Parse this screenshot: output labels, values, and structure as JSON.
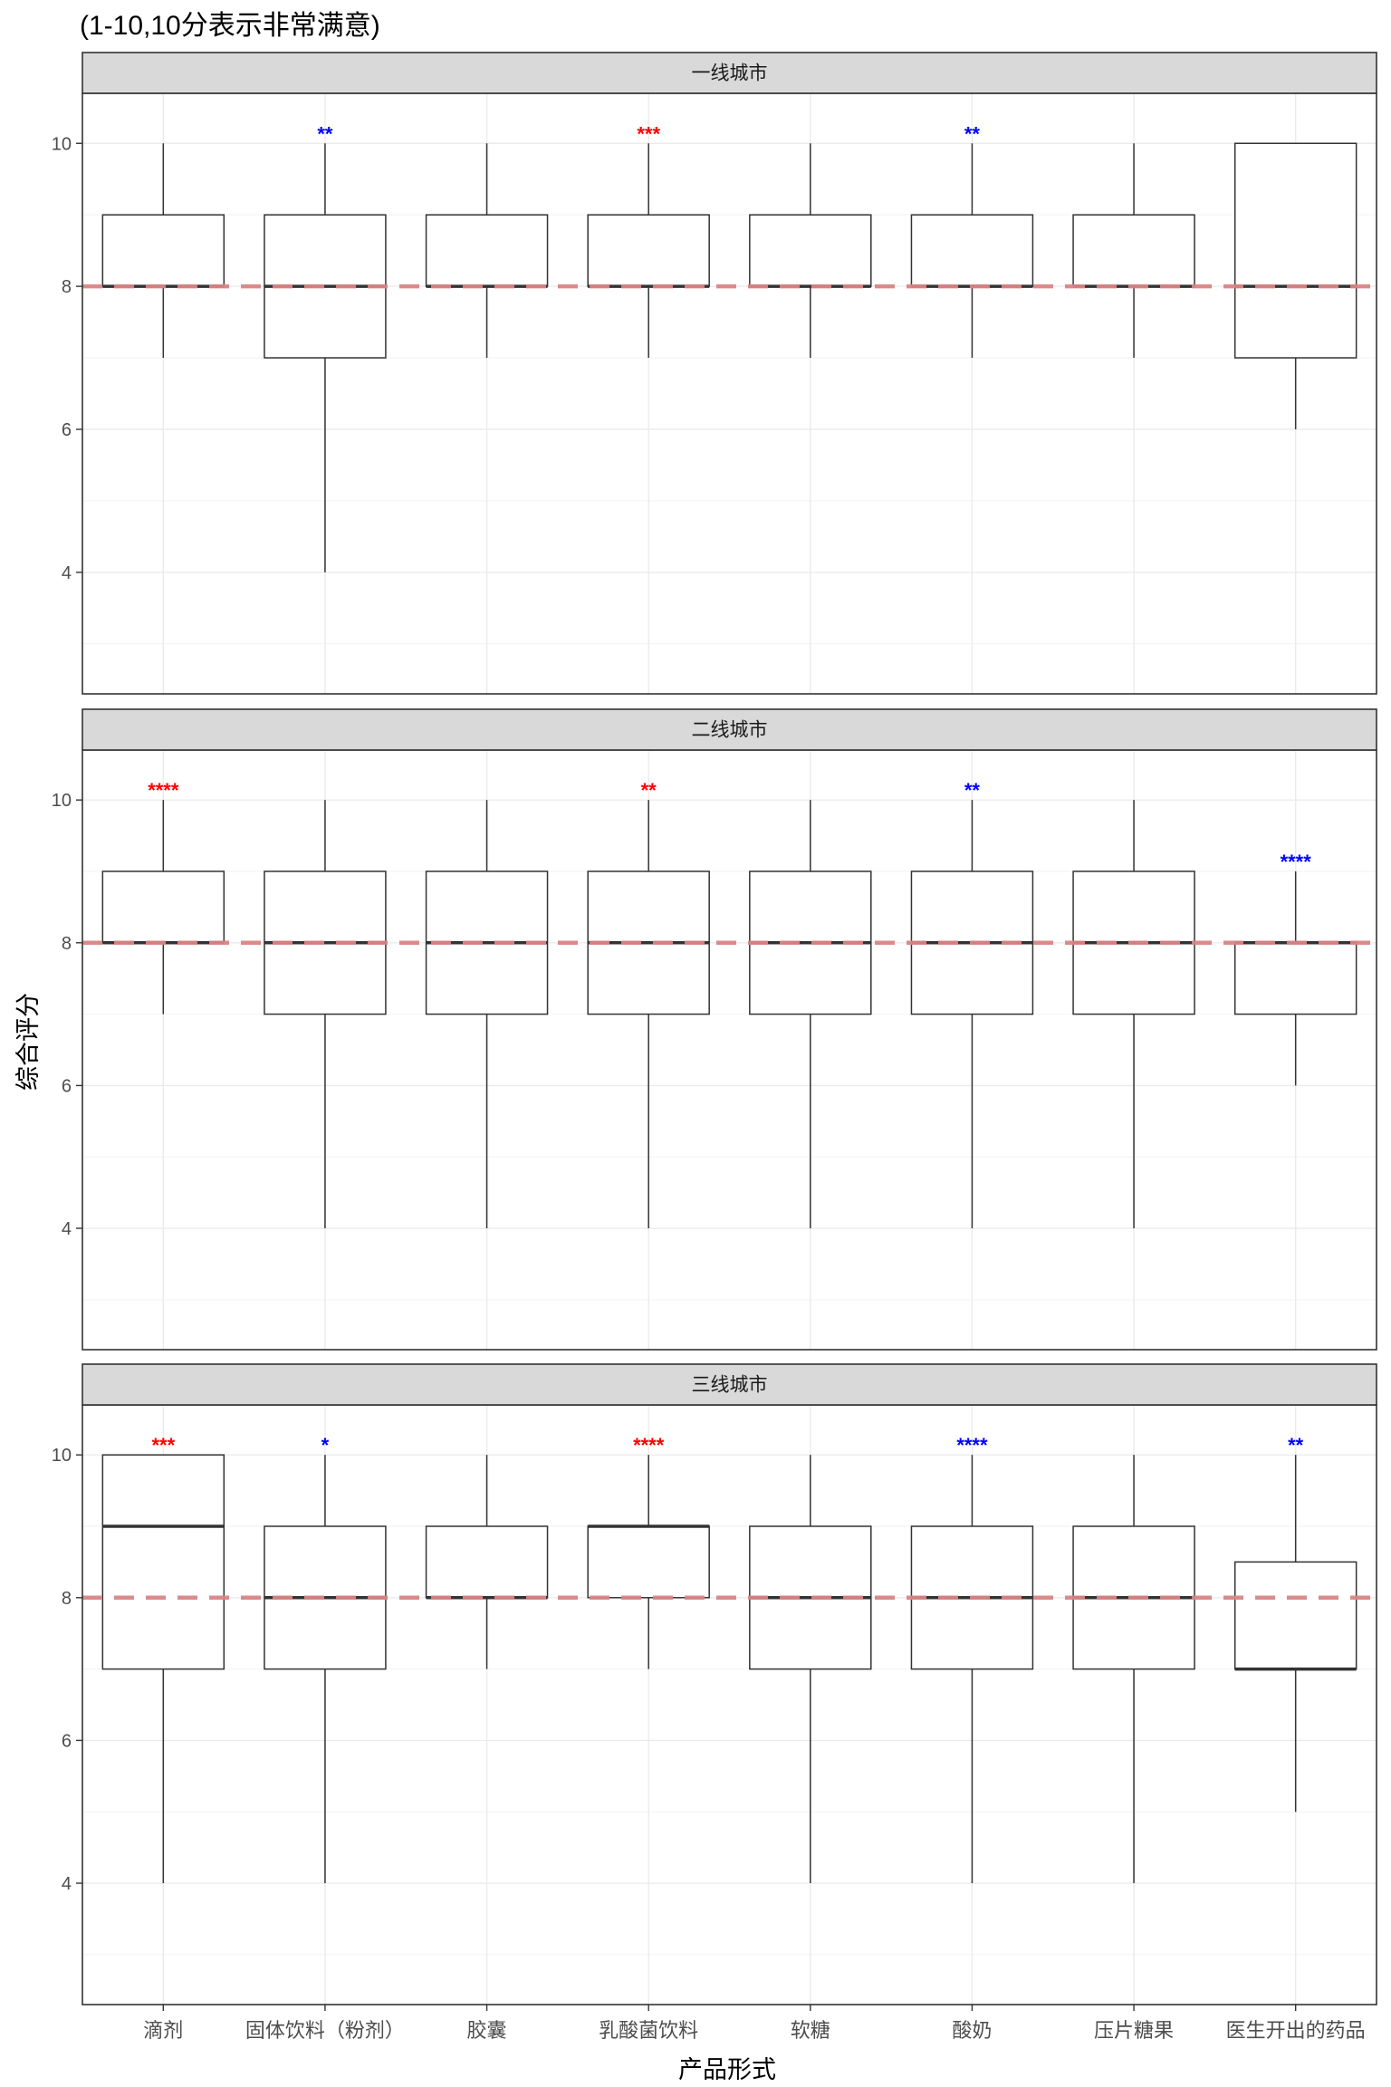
{
  "chart_data": {
    "type": "boxplot",
    "subtitle": "(1-10,10分表示非常满意)",
    "xlabel": "产品形式",
    "ylabel": "综合评分",
    "ylim": [
      2.3,
      10.7
    ],
    "yticks": [
      4,
      6,
      8,
      10
    ],
    "reference_line": 8,
    "reference_line_color": "#d98585",
    "categories": [
      "滴剂",
      "固体饮料（粉剂）",
      "胶囊",
      "乳酸菌饮料",
      "软糖",
      "酸奶",
      "压片糖果",
      "医生开出的药品"
    ],
    "colors": {
      "red": "#ff0000",
      "blue": "#0000ff"
    },
    "grid": true,
    "panels": [
      {
        "label": "一线城市",
        "boxes": [
          {
            "min": 7,
            "q1": 8,
            "median": 8,
            "q3": 9,
            "max": 10,
            "sig": "",
            "sig_color": ""
          },
          {
            "min": 4,
            "q1": 7,
            "median": 8,
            "q3": 9,
            "max": 10,
            "sig": "**",
            "sig_color": "blue"
          },
          {
            "min": 7,
            "q1": 8,
            "median": 8,
            "q3": 9,
            "max": 10,
            "sig": "",
            "sig_color": ""
          },
          {
            "min": 7,
            "q1": 8,
            "median": 8,
            "q3": 9,
            "max": 10,
            "sig": "***",
            "sig_color": "red"
          },
          {
            "min": 7,
            "q1": 8,
            "median": 8,
            "q3": 9,
            "max": 10,
            "sig": "",
            "sig_color": ""
          },
          {
            "min": 7,
            "q1": 8,
            "median": 8,
            "q3": 9,
            "max": 10,
            "sig": "**",
            "sig_color": "blue"
          },
          {
            "min": 7,
            "q1": 8,
            "median": 8,
            "q3": 9,
            "max": 10,
            "sig": "",
            "sig_color": ""
          },
          {
            "min": 6,
            "q1": 7,
            "median": 8,
            "q3": 10,
            "max": 10,
            "sig": "",
            "sig_color": ""
          }
        ]
      },
      {
        "label": "二线城市",
        "boxes": [
          {
            "min": 7,
            "q1": 8,
            "median": 8,
            "q3": 9,
            "max": 10,
            "sig": "****",
            "sig_color": "red"
          },
          {
            "min": 4,
            "q1": 7,
            "median": 8,
            "q3": 9,
            "max": 10,
            "sig": "",
            "sig_color": ""
          },
          {
            "min": 4,
            "q1": 7,
            "median": 8,
            "q3": 9,
            "max": 10,
            "sig": "",
            "sig_color": ""
          },
          {
            "min": 4,
            "q1": 7,
            "median": 8,
            "q3": 9,
            "max": 10,
            "sig": "**",
            "sig_color": "red"
          },
          {
            "min": 4,
            "q1": 7,
            "median": 8,
            "q3": 9,
            "max": 10,
            "sig": "",
            "sig_color": ""
          },
          {
            "min": 4,
            "q1": 7,
            "median": 8,
            "q3": 9,
            "max": 10,
            "sig": "**",
            "sig_color": "blue"
          },
          {
            "min": 4,
            "q1": 7,
            "median": 8,
            "q3": 9,
            "max": 10,
            "sig": "",
            "sig_color": ""
          },
          {
            "min": 6,
            "q1": 7,
            "median": 8,
            "q3": 8,
            "max": 9,
            "sig": "****",
            "sig_color": "blue"
          }
        ]
      },
      {
        "label": "三线城市",
        "boxes": [
          {
            "min": 4,
            "q1": 7,
            "median": 9,
            "q3": 10,
            "max": 10,
            "sig": "***",
            "sig_color": "red"
          },
          {
            "min": 4,
            "q1": 7,
            "median": 8,
            "q3": 9,
            "max": 10,
            "sig": "*",
            "sig_color": "blue"
          },
          {
            "min": 7,
            "q1": 8,
            "median": 8,
            "q3": 9,
            "max": 10,
            "sig": "",
            "sig_color": ""
          },
          {
            "min": 7,
            "q1": 8,
            "median": 9,
            "q3": 9,
            "max": 10,
            "sig": "****",
            "sig_color": "red"
          },
          {
            "min": 4,
            "q1": 7,
            "median": 8,
            "q3": 9,
            "max": 10,
            "sig": "",
            "sig_color": ""
          },
          {
            "min": 4,
            "q1": 7,
            "median": 8,
            "q3": 9,
            "max": 10,
            "sig": "****",
            "sig_color": "blue"
          },
          {
            "min": 4,
            "q1": 7,
            "median": 8,
            "q3": 9,
            "max": 10,
            "sig": "",
            "sig_color": ""
          },
          {
            "min": 5,
            "q1": 7,
            "median": 7,
            "q3": 8.5,
            "max": 10,
            "sig": "**",
            "sig_color": "blue"
          }
        ]
      }
    ]
  }
}
